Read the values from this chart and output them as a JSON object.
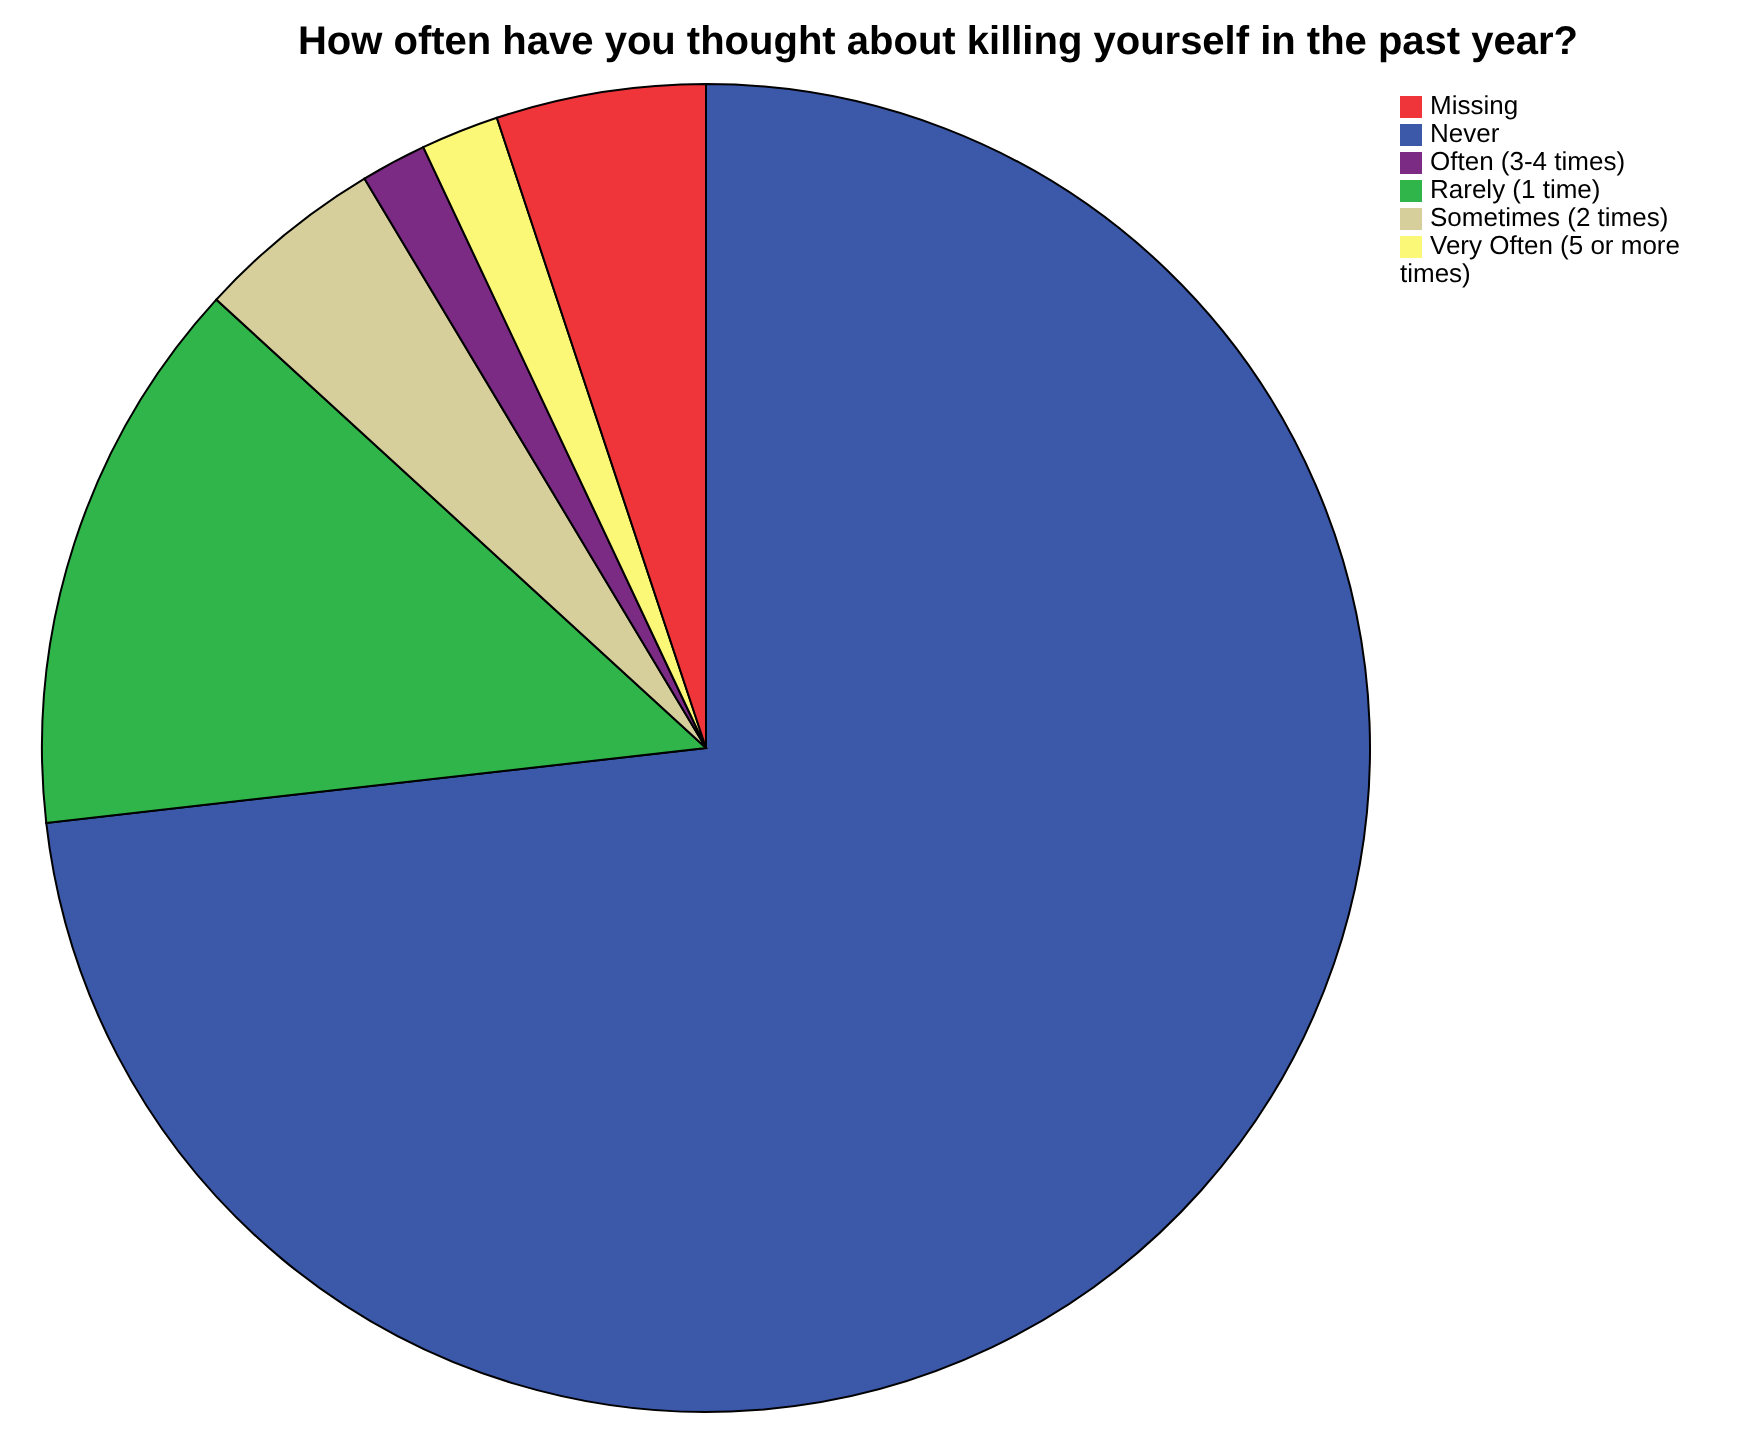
{
  "chart_data": {
    "type": "pie",
    "title": "How often have you thought about killing yourself in the past year?",
    "categories": [
      "Never",
      "Rarely (1 time)",
      "Sometimes (2 times)",
      "Often (3-4 times)",
      "Very Often (5 or more times)",
      "Missing"
    ],
    "values": [
      73.2,
      13.6,
      4.6,
      1.6,
      1.9,
      5.1
    ],
    "colors": [
      "#3c58a8",
      "#30b54a",
      "#d6cf9b",
      "#7b2b83",
      "#fbf877",
      "#ef3539"
    ],
    "legend": "top right"
  }
}
